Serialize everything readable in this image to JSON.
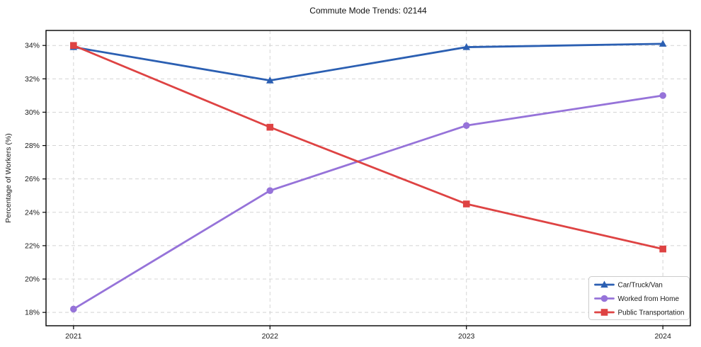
{
  "chart_data": {
    "type": "line",
    "title": "Commute Mode Trends: 02144",
    "xlabel": "",
    "ylabel": "Percentage of Workers (%)",
    "x": [
      2021,
      2022,
      2023,
      2024
    ],
    "x_tick_labels": [
      "2021",
      "2022",
      "2023",
      "2024"
    ],
    "y_ticks": [
      18,
      20,
      22,
      24,
      26,
      28,
      30,
      32,
      34
    ],
    "y_tick_suffix": "%",
    "xlim": [
      2020.86,
      2024.14
    ],
    "ylim": [
      17.2,
      34.9
    ],
    "grid": true,
    "grid_style": "dashed",
    "legend_position": "lower right",
    "series": [
      {
        "name": "Car/Truck/Van",
        "marker": "triangle",
        "color": "#2b5fb2",
        "values": [
          33.9,
          31.9,
          33.9,
          34.1
        ]
      },
      {
        "name": "Worked from Home",
        "marker": "circle",
        "color": "#9673d9",
        "values": [
          18.2,
          25.3,
          29.2,
          31.0
        ]
      },
      {
        "name": "Public Transportation",
        "marker": "square",
        "color": "#de4343",
        "values": [
          34.0,
          29.1,
          24.5,
          21.8
        ]
      }
    ],
    "colors": {
      "axis": "#000000",
      "grid": "#d4d4d4",
      "background": "#ffffff",
      "legend_border": "#cccccc",
      "tick_text": "#1a1a1a"
    }
  }
}
